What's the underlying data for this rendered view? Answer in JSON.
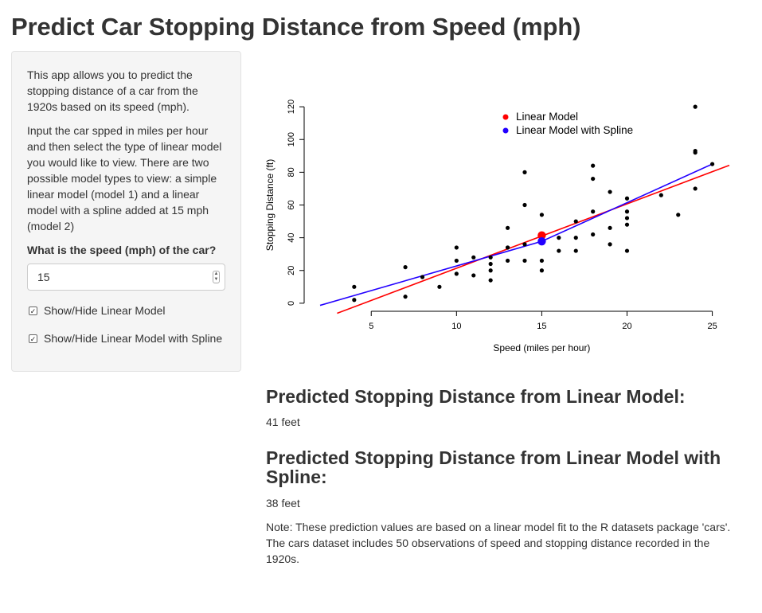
{
  "page": {
    "title": "Predict Car Stopping Distance from Speed (mph)"
  },
  "sidebar": {
    "intro": "This app allows you to predict the stopping distance of a car from the 1920s based on its speed (mph).",
    "instructions": "Input the car spped in miles per hour and then select the type of linear model you would like to view. There are two possible model types to view: a simple linear model (model 1) and a linear model with a spline added at 15 mph (model 2)",
    "speed_label": "What is the speed (mph) of the car?",
    "speed_value": "15",
    "checkbox_linear": {
      "label": "Show/Hide Linear Model",
      "checked": true
    },
    "checkbox_spline": {
      "label": "Show/Hide Linear Model with Spline",
      "checked": true
    }
  },
  "results": {
    "linear_heading": "Predicted Stopping Distance from Linear Model:",
    "linear_value": "41 feet",
    "spline_heading": "Predicted Stopping Distance from Linear Model with Spline:",
    "spline_value": "38 feet",
    "note": "Note: These prediction values are based on a linear model fit to the R datasets package 'cars'. The cars dataset includes 50 observations of speed and stopping distance recorded in the 1920s."
  },
  "chart_data": {
    "type": "scatter",
    "xlabel": "Speed (miles per hour)",
    "ylabel": "Stopping Distance (ft)",
    "xlim": [
      2,
      26
    ],
    "ylim": [
      -2,
      122
    ],
    "xticks": [
      5,
      10,
      15,
      20,
      25
    ],
    "yticks": [
      0,
      20,
      40,
      60,
      80,
      100,
      120
    ],
    "legend": {
      "placement": "top-center",
      "entries": [
        {
          "label": "Linear Model",
          "color": "#ff0000"
        },
        {
          "label": "Linear Model with Spline",
          "color": "#2200ff"
        }
      ]
    },
    "points": [
      [
        4,
        2
      ],
      [
        4,
        10
      ],
      [
        7,
        4
      ],
      [
        7,
        22
      ],
      [
        8,
        16
      ],
      [
        9,
        10
      ],
      [
        10,
        18
      ],
      [
        10,
        26
      ],
      [
        10,
        34
      ],
      [
        11,
        17
      ],
      [
        11,
        28
      ],
      [
        12,
        14
      ],
      [
        12,
        20
      ],
      [
        12,
        24
      ],
      [
        12,
        28
      ],
      [
        13,
        26
      ],
      [
        13,
        34
      ],
      [
        13,
        34
      ],
      [
        13,
        46
      ],
      [
        14,
        26
      ],
      [
        14,
        36
      ],
      [
        14,
        60
      ],
      [
        14,
        80
      ],
      [
        15,
        20
      ],
      [
        15,
        26
      ],
      [
        15,
        54
      ],
      [
        16,
        32
      ],
      [
        16,
        40
      ],
      [
        17,
        32
      ],
      [
        17,
        40
      ],
      [
        17,
        50
      ],
      [
        18,
        42
      ],
      [
        18,
        56
      ],
      [
        18,
        76
      ],
      [
        18,
        84
      ],
      [
        19,
        36
      ],
      [
        19,
        46
      ],
      [
        19,
        68
      ],
      [
        20,
        32
      ],
      [
        20,
        48
      ],
      [
        20,
        52
      ],
      [
        20,
        56
      ],
      [
        20,
        64
      ],
      [
        22,
        66
      ],
      [
        23,
        54
      ],
      [
        24,
        70
      ],
      [
        24,
        92
      ],
      [
        24,
        93
      ],
      [
        24,
        120
      ],
      [
        25,
        85
      ]
    ],
    "linear_model": {
      "color": "#ff0000",
      "line": [
        [
          3,
          -6.16
        ],
        [
          26,
          84.28
        ]
      ],
      "prediction": [
        15,
        41.41
      ]
    },
    "spline_model": {
      "color": "#2200ff",
      "line": [
        [
          2,
          -1.3
        ],
        [
          15,
          37.8
        ],
        [
          25,
          85
        ]
      ],
      "prediction": [
        15,
        37.8
      ]
    }
  }
}
